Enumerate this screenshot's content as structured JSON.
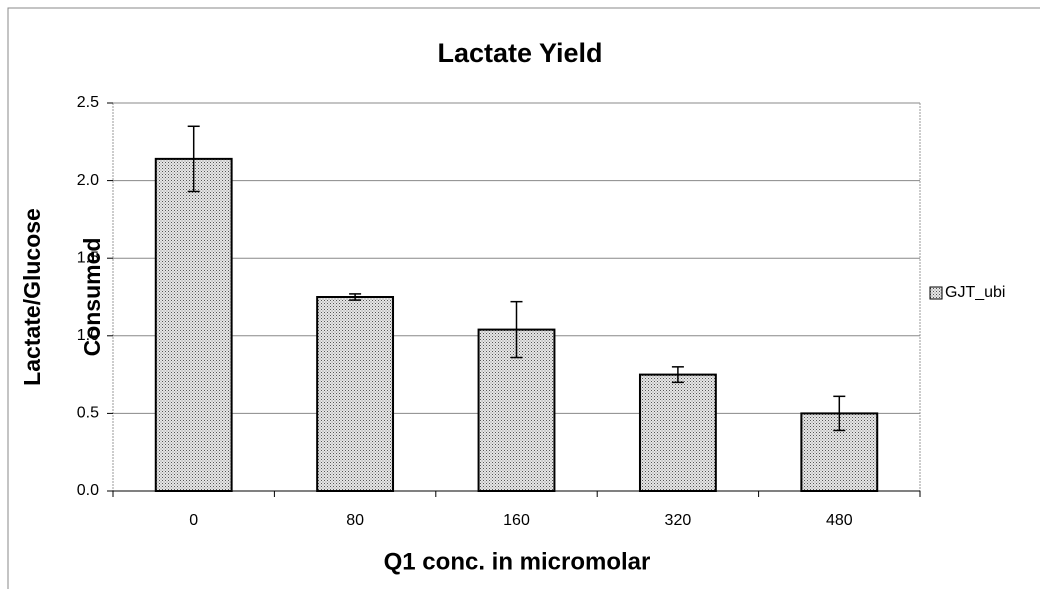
{
  "chart_data": {
    "type": "bar",
    "title": "Lactate Yield",
    "xlabel": "Q1 conc.  in micromolar",
    "ylabel": [
      "Lactate/Glucose",
      "Consumed"
    ],
    "categories": [
      "0",
      "80",
      "160",
      "320",
      "480"
    ],
    "series": [
      {
        "name": "GJT_ubi",
        "color": "#d4d4d4",
        "values": [
          2.14,
          1.25,
          1.04,
          0.75,
          0.5
        ],
        "errors": [
          0.21,
          0.02,
          0.18,
          0.05,
          0.11
        ]
      }
    ],
    "ylim": [
      0,
      2.5
    ],
    "yticks": [
      {
        "value": 0,
        "label": "0.0"
      },
      0.5,
      {
        "value": 1,
        "label": "1.0"
      },
      1.5,
      {
        "value": 2,
        "label": "2.0"
      },
      2.5
    ],
    "grid": true,
    "legend": "right"
  }
}
